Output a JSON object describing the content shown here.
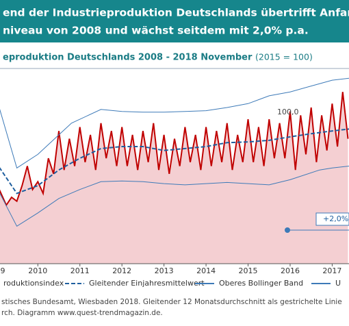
{
  "header": {
    "line1": "end der Industrieproduktion Deutschlands übertrifft Anfang",
    "line2": "niveau von 2008 und wächst seitdem mit 2,0% p.a."
  },
  "chart_data": {
    "type": "line",
    "title": "eproduktion Deutschlands 2008 - 2018 November",
    "subtitle": "(2015 = 100)",
    "annotations": [
      "100,0",
      "+2,0%"
    ],
    "xlim": [
      2009.1,
      2017.4
    ],
    "ylim": [
      60,
      110
    ],
    "xticks": [
      {
        "value": 2009,
        "label": "9"
      },
      2010,
      2011,
      2012,
      2013,
      2014,
      2015,
      2016,
      2017
    ],
    "series": [
      {
        "name": "roduktionsindex",
        "color": "#c00000",
        "fill": "#f4cfd2",
        "x": [
          2009,
          2009.125,
          2009.25,
          2009.375,
          2009.5,
          2009.625,
          2009.75,
          2009.875,
          2010,
          2010.125,
          2010.25,
          2010.375,
          2010.5,
          2010.625,
          2010.75,
          2010.875,
          2011,
          2011.125,
          2011.25,
          2011.375,
          2011.5,
          2011.625,
          2011.75,
          2011.875,
          2012,
          2012.125,
          2012.25,
          2012.375,
          2012.5,
          2012.625,
          2012.75,
          2012.875,
          2013,
          2013.125,
          2013.25,
          2013.375,
          2013.5,
          2013.625,
          2013.75,
          2013.875,
          2014,
          2014.125,
          2014.25,
          2014.375,
          2014.5,
          2014.625,
          2014.75,
          2014.875,
          2015,
          2015.125,
          2015.25,
          2015.375,
          2015.5,
          2015.625,
          2015.75,
          2015.875,
          2016,
          2016.125,
          2016.25,
          2016.375,
          2016.5,
          2016.625,
          2016.75,
          2016.875,
          2017,
          2017.125,
          2017.25,
          2017.375
        ],
        "values": [
          81,
          78,
          75,
          77,
          76,
          80,
          85,
          79,
          81,
          78,
          87,
          83,
          94,
          84,
          92,
          85,
          95,
          86,
          93,
          84,
          96,
          87,
          94,
          85,
          95,
          85,
          93,
          84,
          94,
          86,
          96,
          84,
          93,
          83,
          92,
          85,
          95,
          86,
          93,
          84,
          95,
          85,
          94,
          86,
          96,
          84,
          93,
          86,
          97,
          86,
          95,
          85,
          97,
          87,
          96,
          87,
          99,
          84,
          98,
          88,
          100,
          86,
          98,
          89,
          101,
          90,
          104,
          92
        ]
      },
      {
        "name": "Gleitender Einjahresmittelwert",
        "color": "#1f5f9f",
        "dashed": true,
        "x": [
          2009,
          2009.5,
          2010,
          2010.5,
          2011,
          2011.5,
          2012,
          2012.5,
          2013,
          2013.5,
          2014,
          2014.5,
          2015,
          2015.5,
          2016,
          2016.5,
          2017,
          2017.4
        ],
        "values": [
          86,
          78,
          80,
          84,
          87,
          89.5,
          90,
          90,
          89,
          89.5,
          90,
          91,
          91.2,
          91.6,
          92.5,
          93.3,
          94,
          94.5
        ]
      },
      {
        "name": "Oberes Bollinger Band",
        "color": "#3d7ab8",
        "x": [
          2009,
          2009.5,
          2010,
          2010.5,
          2010.8,
          2011.5,
          2012,
          2012.5,
          2013,
          2013.5,
          2014,
          2014.5,
          2015,
          2015.5,
          2016,
          2016.5,
          2017,
          2017.4
        ],
        "values": [
          103,
          84.5,
          88,
          93,
          96,
          99.5,
          99,
          98.8,
          98.8,
          99,
          99.2,
          100,
          101,
          103,
          104,
          105.5,
          107,
          107.5
        ]
      },
      {
        "name": "U",
        "color": "#3d7ab8",
        "x": [
          2009,
          2009.5,
          2010,
          2010.5,
          2011,
          2011.5,
          2012,
          2012.5,
          2013,
          2013.5,
          2014,
          2014.5,
          2015,
          2015.5,
          2016,
          2016.7,
          2017,
          2017.4
        ],
        "values": [
          80,
          69.6,
          73,
          76.7,
          79,
          81,
          81.2,
          81,
          80.5,
          80.2,
          80.5,
          80.8,
          80.5,
          80.2,
          81.5,
          84,
          84.5,
          85
        ]
      }
    ]
  },
  "footer": {
    "line1": "stisches Bundesamt, Wiesbaden 2018. Gleitender 12 Monatsdurchschnitt als gestrichelte Linie",
    "line2": "rch. Diagramm www.quest-trendmagazin.de."
  }
}
